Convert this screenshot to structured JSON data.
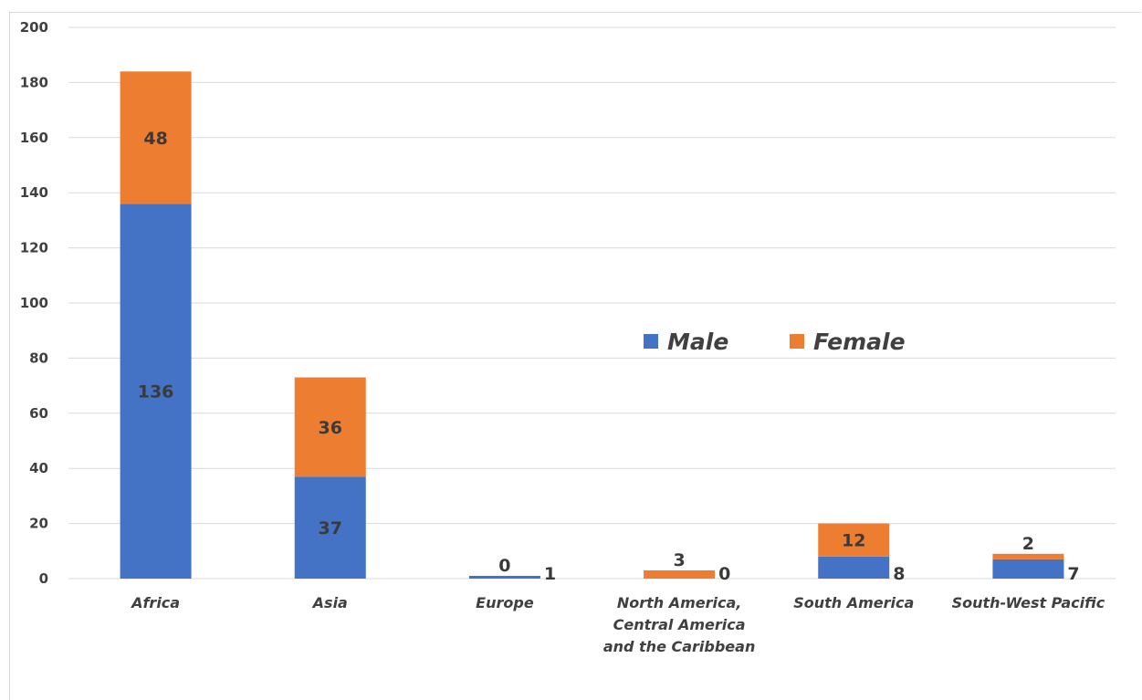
{
  "chart_data": {
    "type": "bar",
    "stacked": true,
    "categories": [
      [
        "Africa"
      ],
      [
        "Asia"
      ],
      [
        "Europe"
      ],
      [
        "North America,",
        "Central America",
        "and the Caribbean"
      ],
      [
        "South America"
      ],
      [
        "South-West Pacific"
      ]
    ],
    "series": [
      {
        "name": "Male",
        "values": [
          136,
          37,
          1,
          0,
          8,
          7
        ],
        "color": "#4472c4"
      },
      {
        "name": "Female",
        "values": [
          48,
          36,
          0,
          3,
          12,
          2
        ],
        "color": "#ed7d31"
      }
    ],
    "ylim": [
      0,
      200
    ],
    "yticks": [
      0,
      20,
      40,
      60,
      80,
      100,
      120,
      140,
      160,
      180,
      200
    ],
    "grid": true,
    "legend_position": "center-right",
    "title": "",
    "xlabel": "",
    "ylabel": ""
  }
}
